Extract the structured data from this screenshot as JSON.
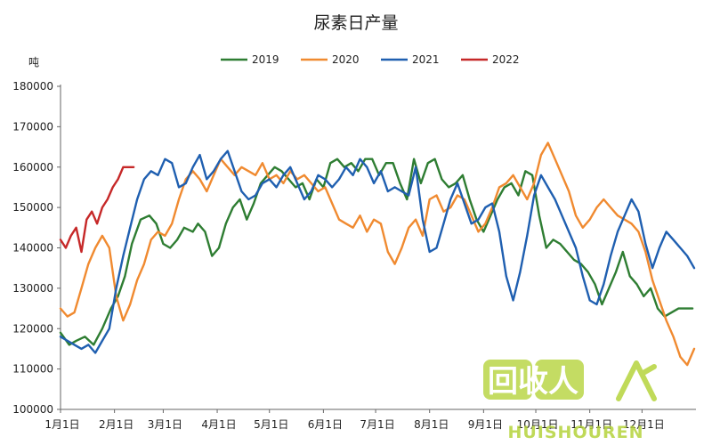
{
  "chart_data": {
    "type": "line",
    "title": "尿素日产量",
    "ylabel": "吨",
    "ylim": [
      100000,
      180000
    ],
    "yticks": [
      100000,
      110000,
      120000,
      130000,
      140000,
      150000,
      160000,
      170000,
      180000
    ],
    "xlim": [
      1,
      366
    ],
    "xticks": [
      {
        "label": "1月1日",
        "day": 1
      },
      {
        "label": "2月1日",
        "day": 32
      },
      {
        "label": "3月1日",
        "day": 60
      },
      {
        "label": "4月1日",
        "day": 91
      },
      {
        "label": "5月1日",
        "day": 121
      },
      {
        "label": "6月1日",
        "day": 152
      },
      {
        "label": "7月1日",
        "day": 182
      },
      {
        "label": "8月1日",
        "day": 213
      },
      {
        "label": "9月1日",
        "day": 244
      },
      {
        "label": "10月1日",
        "day": 274
      },
      {
        "label": "11月1日",
        "day": 305
      },
      {
        "label": "12月1日",
        "day": 335
      }
    ],
    "legend_position": "top",
    "grid": false,
    "series": [
      {
        "name": "2019",
        "color": "#2e7d32",
        "x": [
          1,
          6,
          10,
          15,
          20,
          25,
          30,
          34,
          38,
          42,
          47,
          52,
          56,
          60,
          64,
          68,
          72,
          77,
          80,
          84,
          88,
          92,
          96,
          100,
          104,
          108,
          112,
          116,
          120,
          124,
          128,
          132,
          136,
          140,
          144,
          148,
          152,
          156,
          160,
          164,
          168,
          172,
          176,
          180,
          184,
          188,
          192,
          196,
          200,
          204,
          208,
          212,
          216,
          220,
          224,
          228,
          232,
          236,
          240,
          244,
          248,
          252,
          256,
          260,
          264,
          268,
          272,
          276,
          280,
          284,
          288,
          292,
          296,
          300,
          304,
          308,
          312,
          316,
          320,
          324,
          328,
          332,
          336,
          340,
          344,
          348,
          352,
          356,
          360,
          364
        ],
        "y": [
          119000,
          116000,
          117000,
          118000,
          116000,
          120000,
          125000,
          128000,
          133000,
          141000,
          147000,
          148000,
          146000,
          141000,
          140000,
          142000,
          145000,
          144000,
          146000,
          144000,
          138000,
          140000,
          146000,
          150000,
          152000,
          147000,
          151000,
          156000,
          158000,
          160000,
          159000,
          157000,
          155000,
          156000,
          152000,
          157000,
          155000,
          161000,
          162000,
          160000,
          161000,
          159000,
          162000,
          162000,
          158000,
          161000,
          161000,
          156000,
          152000,
          162000,
          156000,
          161000,
          162000,
          157000,
          155000,
          156000,
          158000,
          152000,
          147000,
          144000,
          148000,
          152000,
          155000,
          156000,
          153000,
          159000,
          158000,
          148000,
          140000,
          142000,
          141000,
          139000,
          137000,
          136000,
          134000,
          131000,
          126000,
          130000,
          134000,
          139000,
          133000,
          131000,
          128000,
          130000,
          125000,
          123000,
          124000,
          125000,
          125000,
          125000
        ]
      },
      {
        "name": "2020",
        "color": "#f08a30",
        "x": [
          1,
          5,
          9,
          13,
          17,
          21,
          25,
          29,
          33,
          37,
          41,
          45,
          49,
          53,
          57,
          61,
          65,
          69,
          73,
          77,
          81,
          85,
          89,
          93,
          97,
          101,
          105,
          109,
          113,
          117,
          121,
          125,
          129,
          133,
          137,
          141,
          145,
          149,
          153,
          157,
          161,
          165,
          169,
          173,
          177,
          181,
          185,
          189,
          193,
          197,
          201,
          205,
          209,
          213,
          217,
          221,
          225,
          229,
          233,
          237,
          241,
          245,
          249,
          253,
          257,
          261,
          265,
          269,
          273,
          277,
          281,
          285,
          289,
          293,
          297,
          301,
          305,
          309,
          313,
          317,
          321,
          325,
          329,
          333,
          337,
          341,
          345,
          349,
          353,
          357,
          361,
          365
        ],
        "y": [
          125000,
          123000,
          124000,
          130000,
          136000,
          140000,
          143000,
          140000,
          128000,
          122000,
          126000,
          132000,
          136000,
          142000,
          144000,
          143000,
          146000,
          152000,
          157000,
          159000,
          157000,
          154000,
          158000,
          162000,
          160000,
          158000,
          160000,
          159000,
          158000,
          161000,
          157000,
          158000,
          156000,
          159000,
          157000,
          158000,
          156000,
          154000,
          155000,
          151000,
          147000,
          146000,
          145000,
          148000,
          144000,
          147000,
          146000,
          139000,
          136000,
          140000,
          145000,
          147000,
          143000,
          152000,
          153000,
          149000,
          150000,
          153000,
          152000,
          148000,
          144000,
          146000,
          150000,
          155000,
          156000,
          158000,
          155000,
          152000,
          156000,
          163000,
          166000,
          162000,
          158000,
          154000,
          148000,
          145000,
          147000,
          150000,
          152000,
          150000,
          148000,
          147000,
          146000,
          144000,
          139000,
          132000,
          127000,
          122000,
          118000,
          113000,
          111000,
          115000
        ]
      },
      {
        "name": "2021",
        "color": "#1f5fb0",
        "x": [
          1,
          5,
          9,
          13,
          17,
          21,
          25,
          29,
          33,
          37,
          41,
          45,
          49,
          53,
          57,
          61,
          65,
          69,
          73,
          77,
          81,
          85,
          89,
          93,
          97,
          101,
          105,
          109,
          113,
          117,
          121,
          125,
          129,
          133,
          137,
          141,
          145,
          149,
          153,
          157,
          161,
          165,
          169,
          173,
          177,
          181,
          185,
          189,
          193,
          197,
          201,
          205,
          209,
          213,
          217,
          221,
          225,
          229,
          233,
          237,
          241,
          245,
          249,
          253,
          257,
          261,
          265,
          269,
          273,
          277,
          281,
          285,
          289,
          293,
          297,
          301,
          305,
          309,
          313,
          317,
          321,
          325,
          329,
          333,
          337,
          341,
          345,
          349,
          353,
          357,
          361,
          365
        ],
        "y": [
          118000,
          117000,
          116000,
          115000,
          116000,
          114000,
          117000,
          120000,
          130000,
          138000,
          145000,
          152000,
          157000,
          159000,
          158000,
          162000,
          161000,
          155000,
          156000,
          160000,
          163000,
          157000,
          159000,
          162000,
          164000,
          159000,
          154000,
          152000,
          153000,
          156000,
          157000,
          155000,
          158000,
          160000,
          156000,
          152000,
          154000,
          158000,
          157000,
          155000,
          157000,
          160000,
          158000,
          162000,
          160000,
          156000,
          159000,
          154000,
          155000,
          154000,
          153000,
          160000,
          147000,
          139000,
          140000,
          146000,
          152000,
          156000,
          151000,
          146000,
          147000,
          150000,
          151000,
          144000,
          133000,
          127000,
          134000,
          143000,
          153000,
          158000,
          155000,
          152000,
          148000,
          144000,
          140000,
          133000,
          127000,
          126000,
          131000,
          138000,
          144000,
          148000,
          152000,
          149000,
          141000,
          135000,
          140000,
          144000,
          142000,
          140000,
          138000,
          135000
        ]
      },
      {
        "name": "2022",
        "color": "#c62828",
        "x": [
          1,
          4,
          7,
          10,
          13,
          16,
          19,
          22,
          25,
          28,
          31,
          34,
          37,
          40,
          43
        ],
        "y": [
          142000,
          140000,
          143000,
          145000,
          139000,
          147000,
          149000,
          146000,
          150000,
          152000,
          155000,
          157000,
          160000,
          160000,
          160000
        ]
      }
    ]
  },
  "watermark": {
    "primary": "回收人",
    "secondary": "HUISHOUREN"
  }
}
